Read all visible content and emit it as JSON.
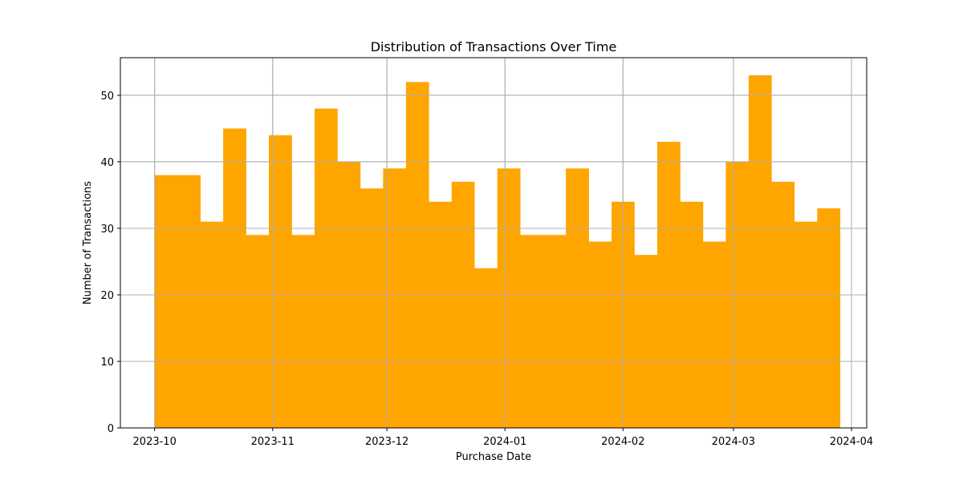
{
  "chart_data": {
    "type": "bar",
    "title": "Distribution of Transactions Over Time",
    "xlabel": "Purchase Date",
    "ylabel": "Number of Transactions",
    "x_tick_labels": [
      "2023-10",
      "2023-11",
      "2023-12",
      "2024-01",
      "2024-02",
      "2024-03",
      "2024-04"
    ],
    "x_ticks": [
      "2023-10-01",
      "2023-11-01",
      "2023-12-01",
      "2024-01-01",
      "2024-02-01",
      "2024-03-01",
      "2024-04-01"
    ],
    "y_ticks": [
      0,
      10,
      20,
      30,
      40,
      50
    ],
    "xlim": [
      "2023-09-22",
      "2024-04-05"
    ],
    "ylim": [
      0,
      55.65
    ],
    "bin_edges": [
      "2023-10-01",
      "2023-10-07",
      "2023-10-13",
      "2023-10-19",
      "2023-10-25",
      "2023-10-31",
      "2023-11-06",
      "2023-11-12",
      "2023-11-18",
      "2023-11-24",
      "2023-11-30",
      "2023-12-06",
      "2023-12-12",
      "2023-12-18",
      "2023-12-24",
      "2023-12-30",
      "2024-01-05",
      "2024-01-11",
      "2024-01-17",
      "2024-01-23",
      "2024-01-29",
      "2024-02-04",
      "2024-02-10",
      "2024-02-16",
      "2024-02-22",
      "2024-02-28",
      "2024-03-05",
      "2024-03-11",
      "2024-03-17",
      "2024-03-23",
      "2024-03-29"
    ],
    "values": [
      38,
      38,
      31,
      45,
      29,
      44,
      29,
      48,
      40,
      36,
      39,
      52,
      34,
      37,
      24,
      39,
      29,
      29,
      39,
      28,
      34,
      26,
      43,
      34,
      28,
      40,
      53,
      37,
      31,
      33
    ],
    "color": "#ffa500",
    "grid": true,
    "legend": "none"
  }
}
